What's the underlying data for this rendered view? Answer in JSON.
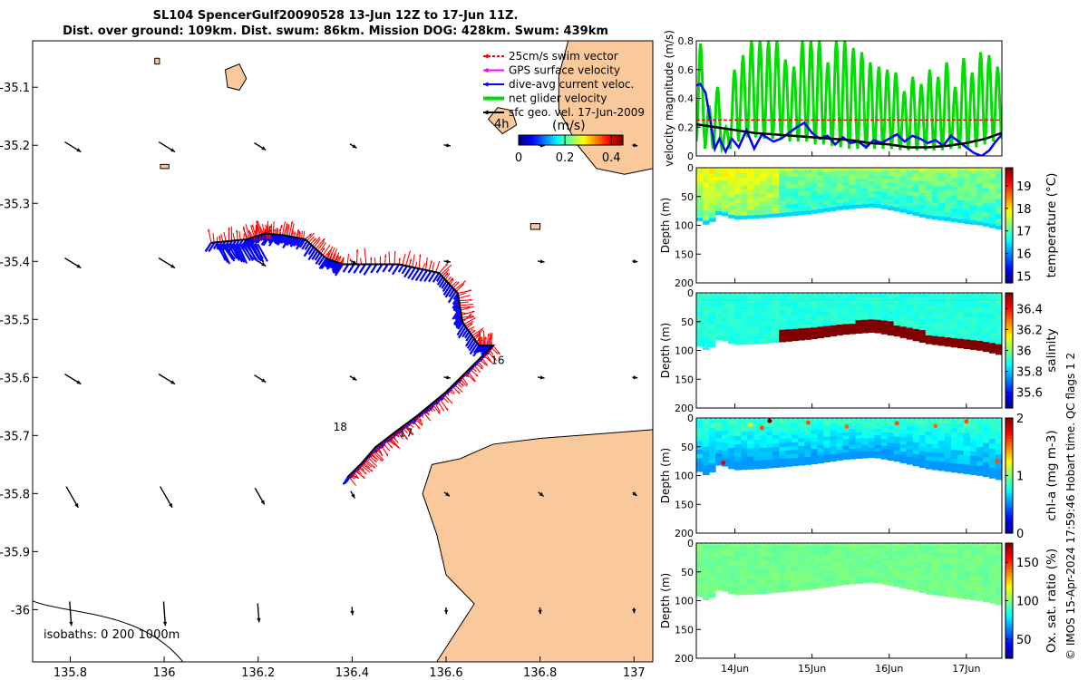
{
  "title": {
    "line1": "SL104 SpencerGulf20090528 13-Jun 12Z to 17-Jun 11Z.",
    "line2": "Dist. over ground: 109km. Dist. swum: 86km. Mission DOG: 428km. Swum: 439km"
  },
  "credit": "© IMOS 15-Apr-2024 17:59:46 Hobart time. QC flags 1  2",
  "colors": {
    "land": "#f9c89b",
    "swim_vector": "#ff0000",
    "gps_velocity": "#ff00ff",
    "dive_avg": "#0000ff",
    "net_velocity": "#00dd00",
    "sfc_geo": "#000000"
  },
  "chart_data": [
    {
      "type": "map",
      "xlim": [
        135.72,
        137.04
      ],
      "ylim": [
        -36.09,
        -35.02
      ],
      "xticks": [
        135.8,
        136,
        136.2,
        136.4,
        136.6,
        136.8,
        137
      ],
      "xtick_labels": [
        "135.8",
        "136",
        "136.2",
        "136.4",
        "136.6",
        "136.8",
        "137"
      ],
      "yticks": [
        -35.1,
        -35.2,
        -35.3,
        -35.4,
        -35.5,
        -35.6,
        -35.7,
        -35.8,
        -35.9,
        -36
      ],
      "ytick_labels": [
        "-35.1",
        "-35.2",
        "-35.3",
        "-35.4",
        "-35.5",
        "-35.6",
        "-35.7",
        "-35.8",
        "-35.9",
        "-36"
      ],
      "legend": [
        {
          "label": "25cm/s swim vector",
          "color_key": "swim_vector"
        },
        {
          "label": "GPS surface velocity",
          "color_key": "gps_velocity"
        },
        {
          "label": "dive-avg current veloc.",
          "color_key": "dive_avg"
        },
        {
          "label": "net glider velocity",
          "color_key": "net_velocity"
        },
        {
          "label": "sfc geo. vel. 17-Jun-2009",
          "color_key": "sfc_geo"
        }
      ],
      "legend_position": "top-right",
      "scale_label": "4h",
      "colorbar": {
        "label": "(m/s)",
        "ticks": [
          0,
          0.2,
          0.4
        ],
        "tick_labels": [
          "0",
          "0.2",
          "0.4"
        ],
        "range": [
          0,
          0.45
        ]
      },
      "isobaths_label": "isobaths: 0   200  1000m",
      "day_labels": [
        {
          "text": "16",
          "lon": 136.695,
          "lat": -35.577
        },
        {
          "text": "17",
          "lon": 136.5,
          "lat": -35.702
        },
        {
          "text": "18",
          "lon": 136.36,
          "lat": -35.692
        }
      ],
      "track": [
        [
          136.1,
          -35.368
        ],
        [
          136.175,
          -35.362
        ],
        [
          136.215,
          -35.352
        ],
        [
          136.255,
          -35.355
        ],
        [
          136.3,
          -35.362
        ],
        [
          136.345,
          -35.395
        ],
        [
          136.38,
          -35.405
        ],
        [
          136.5,
          -35.405
        ],
        [
          136.585,
          -35.42
        ],
        [
          136.625,
          -35.455
        ],
        [
          136.635,
          -35.505
        ],
        [
          136.67,
          -35.545
        ],
        [
          136.7,
          -35.545
        ],
        [
          136.65,
          -35.585
        ],
        [
          136.6,
          -35.625
        ],
        [
          136.54,
          -35.665
        ],
        [
          136.49,
          -35.695
        ],
        [
          136.45,
          -35.72
        ],
        [
          136.42,
          -35.748
        ],
        [
          136.39,
          -35.772
        ]
      ],
      "sfc_arrows": {
        "lons": [
          135.8,
          136.0,
          136.2,
          136.4,
          136.6,
          136.8,
          137.0
        ],
        "lats": [
          -35.2,
          -35.4,
          -35.6,
          -35.8,
          -36.0
        ]
      },
      "land": [
        {
          "name": "yorke-peninsula-tip",
          "points": [
            [
              136.86,
              -35.02
            ],
            [
              137.04,
              -35.02
            ],
            [
              137.04,
              -35.24
            ],
            [
              136.98,
              -35.25
            ],
            [
              136.92,
              -35.24
            ],
            [
              136.88,
              -35.2
            ],
            [
              136.84,
              -35.14
            ],
            [
              136.84,
              -35.08
            ]
          ]
        },
        {
          "name": "kangaroo-island",
          "points": [
            [
              136.58,
              -36.09
            ],
            [
              136.62,
              -36.04
            ],
            [
              136.66,
              -35.99
            ],
            [
              136.6,
              -35.94
            ],
            [
              136.58,
              -35.87
            ],
            [
              136.55,
              -35.8
            ],
            [
              136.57,
              -35.75
            ],
            [
              136.63,
              -35.74
            ],
            [
              136.7,
              -35.715
            ],
            [
              136.8,
              -35.705
            ],
            [
              136.88,
              -35.7
            ],
            [
              137.04,
              -35.69
            ],
            [
              137.04,
              -36.09
            ]
          ]
        },
        {
          "name": "island-north",
          "points": [
            [
              136.13,
              -35.07
            ],
            [
              136.16,
              -35.06
            ],
            [
              136.175,
              -35.085
            ],
            [
              136.16,
              -35.105
            ],
            [
              136.135,
              -35.1
            ]
          ]
        },
        {
          "name": "island-mid",
          "points": [
            [
              136.69,
              -35.155
            ],
            [
              136.71,
              -35.135
            ],
            [
              136.74,
              -35.14
            ],
            [
              136.75,
              -35.165
            ],
            [
              136.72,
              -35.18
            ]
          ]
        },
        {
          "name": "islet-a",
          "points": [
            [
              135.98,
              -35.05
            ],
            [
              135.99,
              -35.05
            ],
            [
              135.99,
              -35.06
            ],
            [
              135.98,
              -35.06
            ]
          ]
        },
        {
          "name": "islet-b",
          "points": [
            [
              135.992,
              -35.233
            ],
            [
              136.01,
              -35.233
            ],
            [
              136.01,
              -35.24
            ],
            [
              135.992,
              -35.24
            ]
          ]
        },
        {
          "name": "islet-c",
          "points": [
            [
              136.78,
              -35.335
            ],
            [
              136.8,
              -35.335
            ],
            [
              136.8,
              -35.345
            ],
            [
              136.78,
              -35.345
            ]
          ]
        }
      ]
    },
    {
      "type": "line",
      "ylabel": "velocity magnitude (m/s)",
      "ylim": [
        0,
        0.8
      ],
      "yticks": [
        0,
        0.2,
        0.4,
        0.6,
        0.8
      ],
      "series": [
        {
          "name": "net glider velocity",
          "color_key": "net_velocity",
          "style": "oscillating",
          "x": [
            13.5,
            13.61,
            13.72,
            13.83,
            13.94,
            14.05,
            14.16,
            14.27,
            14.38,
            14.49,
            14.6,
            14.71,
            14.82,
            14.93,
            15.04,
            15.15,
            15.26,
            15.37,
            15.48,
            15.59,
            15.7,
            15.81,
            15.92,
            16.03,
            16.14,
            16.25,
            16.36,
            16.47,
            16.58,
            16.69,
            16.8,
            16.91,
            17.02,
            17.13,
            17.24,
            17.35,
            17.46
          ],
          "peaks": [
            0.78,
            0.35,
            0.48,
            0.2,
            0.6,
            0.7,
            0.8,
            0.8,
            0.8,
            0.8,
            0.67,
            0.62,
            0.8,
            0.8,
            0.8,
            0.65,
            0.8,
            0.8,
            0.75,
            0.72,
            0.65,
            0.62,
            0.6,
            0.58,
            0.45,
            0.55,
            0.5,
            0.6,
            0.55,
            0.65,
            0.48,
            0.68,
            0.58,
            0.72,
            0.7,
            0.62,
            0.7
          ],
          "troughs": [
            0.1,
            0.05,
            0.05,
            0.05,
            0.1,
            0.13,
            0.13,
            0.13,
            0.12,
            0.12,
            0.12,
            0.1,
            0.1,
            0.1,
            0.08,
            0.08,
            0.07,
            0.06,
            0.05,
            0.05,
            0.05,
            0.05,
            0.05,
            0.05,
            0.04,
            0.04,
            0.04,
            0.04,
            0.04,
            0.05,
            0.05,
            0.05,
            0.06,
            0.08,
            0.1,
            0.12,
            0.14
          ]
        },
        {
          "name": "dive-avg current",
          "color_key": "dive_avg",
          "x": [
            13.5,
            13.55,
            13.62,
            13.68,
            13.74,
            13.8,
            13.88,
            13.96,
            14.05,
            14.15,
            14.25,
            14.35,
            14.5,
            14.6,
            14.7,
            14.8,
            14.9,
            15.0,
            15.1,
            15.2,
            15.3,
            15.4,
            15.5,
            15.6,
            15.7,
            15.8,
            15.9,
            16.0,
            16.1,
            16.2,
            16.3,
            16.4,
            16.5,
            16.6,
            16.7,
            16.8,
            16.9,
            17.0,
            17.1,
            17.2,
            17.3,
            17.38,
            17.46
          ],
          "y": [
            0.49,
            0.5,
            0.44,
            0.25,
            0.05,
            0.12,
            0.03,
            0.12,
            0.06,
            0.18,
            0.05,
            0.15,
            0.1,
            0.12,
            0.16,
            0.2,
            0.23,
            0.16,
            0.12,
            0.14,
            0.08,
            0.13,
            0.09,
            0.1,
            0.06,
            0.11,
            0.09,
            0.12,
            0.15,
            0.1,
            0.14,
            0.12,
            0.09,
            0.11,
            0.07,
            0.14,
            0.1,
            0.06,
            0.02,
            0.0,
            0.04,
            0.1,
            0.15
          ]
        },
        {
          "name": "sfc geo. vel.",
          "color_key": "sfc_geo",
          "x": [
            13.5,
            13.75,
            14.0,
            14.25,
            14.5,
            14.75,
            15.0,
            15.25,
            15.5,
            15.75,
            16.0,
            16.25,
            16.5,
            16.75,
            17.0,
            17.25,
            17.46
          ],
          "y": [
            0.22,
            0.2,
            0.18,
            0.16,
            0.15,
            0.14,
            0.13,
            0.12,
            0.11,
            0.09,
            0.08,
            0.06,
            0.06,
            0.07,
            0.09,
            0.12,
            0.16
          ]
        },
        {
          "name": "25cm/s reference",
          "color_key": "swim_vector",
          "style": "dashed",
          "x": [
            13.5,
            17.46
          ],
          "y": [
            0.25,
            0.25
          ]
        }
      ]
    },
    {
      "type": "heatmap",
      "field": "temperature",
      "colorbar_label": "temperature (°C)",
      "crange": [
        14.7,
        19.8
      ],
      "cticks": [
        15,
        16,
        17,
        18,
        19
      ],
      "ytick_labels": [
        "0",
        "50",
        "100",
        "150",
        "200"
      ],
      "ylabel": "Depth (m)",
      "ylim": [
        0,
        200
      ],
      "surface_value": 17.8,
      "bottom_value": 16.4
    },
    {
      "type": "heatmap",
      "field": "salinity",
      "colorbar_label": "salinity",
      "crange": [
        35.45,
        36.55
      ],
      "cticks": [
        35.6,
        35.8,
        36,
        36.2,
        36.4
      ],
      "ctick_labels": [
        "35.6",
        "35.8",
        "36",
        "36.2",
        "36.4"
      ],
      "ytick_labels": [
        "0",
        "50",
        "100",
        "150",
        "200"
      ],
      "ylabel": "Depth (m)",
      "ylim": [
        0,
        200
      ],
      "surface_value": 35.9,
      "bottom_value": 36.55
    },
    {
      "type": "heatmap",
      "field": "chl-a",
      "colorbar_label": "chl-a (mg m-3)",
      "crange": [
        0,
        2
      ],
      "cticks": [
        0,
        1,
        2
      ],
      "ytick_labels": [
        "0",
        "50",
        "100",
        "150",
        "200"
      ],
      "ylabel": "Depth (m)",
      "ylim": [
        0,
        200
      ],
      "surface_value": 0.8,
      "bottom_value": 0.55
    },
    {
      "type": "heatmap",
      "field": "oxygen",
      "colorbar_label": "Ox. sat. ratio (%)",
      "crange": [
        25,
        175
      ],
      "cticks": [
        50,
        100,
        150
      ],
      "ytick_labels": [
        "0",
        "50",
        "100",
        "150",
        "200"
      ],
      "ylabel": "Depth (m)",
      "ylim": [
        0,
        200
      ],
      "surface_value": 100,
      "bottom_value": 100
    }
  ],
  "time_axis": {
    "xlim": [
      13.5,
      17.46
    ],
    "ticks": [
      14,
      15,
      16,
      17
    ],
    "tick_labels": [
      "14Jun",
      "15Jun",
      "16Jun",
      "17Jun"
    ]
  },
  "bathymetry": {
    "x": [
      13.5,
      13.65,
      13.72,
      13.8,
      14.0,
      14.3,
      14.6,
      15.0,
      15.4,
      15.8,
      16.1,
      16.5,
      16.9,
      17.2,
      17.46
    ],
    "y": [
      90,
      100,
      92,
      80,
      90,
      88,
      85,
      80,
      72,
      68,
      75,
      88,
      95,
      100,
      108
    ]
  }
}
